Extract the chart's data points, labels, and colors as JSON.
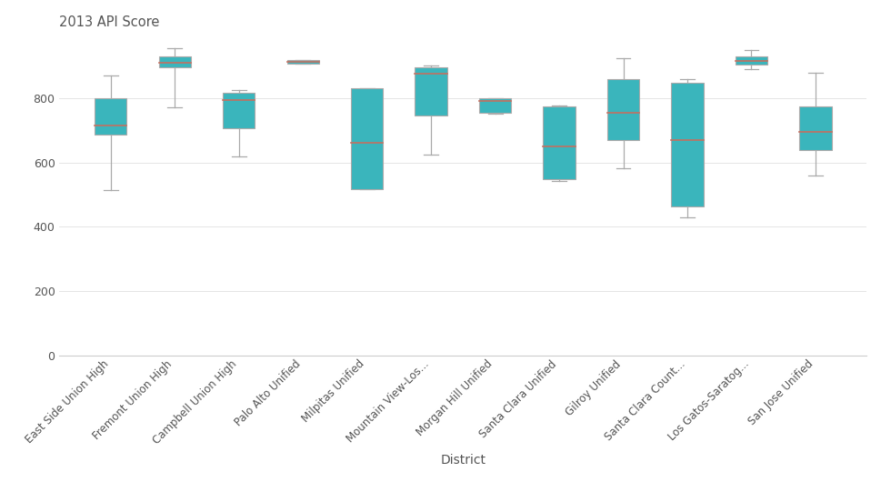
{
  "title": "2013 API Score",
  "xlabel": "District",
  "ylabel": "",
  "ylim": [
    0,
    1000
  ],
  "yticks": [
    0,
    200,
    400,
    600,
    800
  ],
  "box_color": "#3ab5bc",
  "median_color": "#c47060",
  "whisker_color": "#aaaaaa",
  "box_edge_color": "#aaaaaa",
  "background_color": "#ffffff",
  "categories": [
    "East Side Union High",
    "Fremont Union High",
    "Campbell Union High",
    "Palo Alto Unified",
    "Milpitas Unified",
    "Mountain View-Los...",
    "Morgan Hill Unified",
    "Santa Clara Unified",
    "Gilroy Unified",
    "Santa Clara Count...",
    "Los Gatos-Saratog...",
    "San Jose Unified"
  ],
  "boxes": [
    {
      "q1": 685,
      "median": 715,
      "q3": 800,
      "whislo": 515,
      "whishi": 870
    },
    {
      "q1": 895,
      "median": 910,
      "q3": 930,
      "whislo": 770,
      "whishi": 955
    },
    {
      "q1": 705,
      "median": 795,
      "q3": 815,
      "whislo": 618,
      "whishi": 825
    },
    {
      "q1": 908,
      "median": 912,
      "q3": 918,
      "whislo": 908,
      "whishi": 918
    },
    {
      "q1": 518,
      "median": 660,
      "q3": 830,
      "whislo": 518,
      "whishi": 830
    },
    {
      "q1": 745,
      "median": 875,
      "q3": 895,
      "whislo": 625,
      "whishi": 900
    },
    {
      "q1": 755,
      "median": 790,
      "q3": 798,
      "whislo": 750,
      "whishi": 800
    },
    {
      "q1": 548,
      "median": 650,
      "q3": 775,
      "whislo": 542,
      "whishi": 778
    },
    {
      "q1": 668,
      "median": 755,
      "q3": 860,
      "whislo": 582,
      "whishi": 925
    },
    {
      "q1": 462,
      "median": 670,
      "q3": 848,
      "whislo": 428,
      "whishi": 858
    },
    {
      "q1": 905,
      "median": 915,
      "q3": 928,
      "whislo": 890,
      "whishi": 948
    },
    {
      "q1": 638,
      "median": 695,
      "q3": 775,
      "whislo": 558,
      "whishi": 878
    }
  ]
}
